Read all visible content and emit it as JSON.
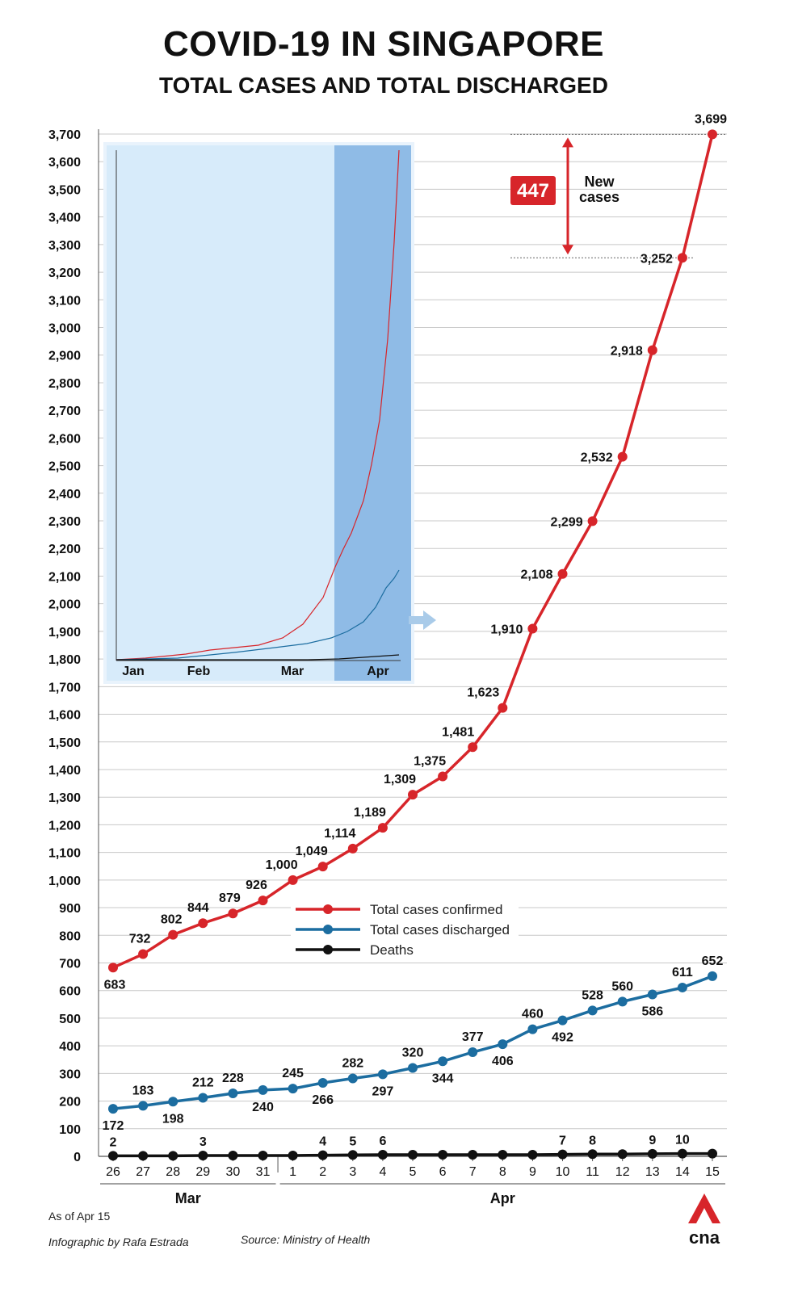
{
  "title": "COVID-19 IN SINGAPORE",
  "subtitle": "TOTAL CASES AND TOTAL DISCHARGED",
  "chart_data": {
    "type": "line",
    "ylim": [
      0,
      3700
    ],
    "y_ticks": [
      0,
      100,
      200,
      300,
      400,
      500,
      600,
      700,
      800,
      900,
      1000,
      1100,
      1200,
      1300,
      1400,
      1500,
      1600,
      1700,
      1800,
      1900,
      2000,
      2100,
      2200,
      2300,
      2400,
      2500,
      2600,
      2700,
      2800,
      2900,
      3000,
      3100,
      3200,
      3300,
      3400,
      3500,
      3600,
      3700
    ],
    "y_tick_labels": [
      "0",
      "100",
      "200",
      "300",
      "400",
      "500",
      "600",
      "700",
      "800",
      "900",
      "1,000",
      "1,100",
      "1,200",
      "1,300",
      "1,400",
      "1,500",
      "1,600",
      "1,700",
      "1,800",
      "1,900",
      "2,000",
      "2,100",
      "2,200",
      "2,300",
      "2,400",
      "2,500",
      "2,600",
      "2,700",
      "2,800",
      "2,900",
      "3,000",
      "3,100",
      "3,200",
      "3,300",
      "3,400",
      "3,500",
      "3,600",
      "3,700"
    ],
    "categories": [
      "26",
      "27",
      "28",
      "29",
      "30",
      "31",
      "1",
      "2",
      "3",
      "4",
      "5",
      "6",
      "7",
      "8",
      "9",
      "10",
      "11",
      "12",
      "13",
      "14",
      "15"
    ],
    "month_groups": [
      {
        "label": "Mar",
        "from": 0,
        "to": 5
      },
      {
        "label": "Apr",
        "from": 6,
        "to": 20
      }
    ],
    "series": [
      {
        "name": "Total cases confirmed",
        "color": "#d7252a",
        "values": [
          683,
          732,
          802,
          844,
          879,
          926,
          1000,
          1049,
          1114,
          1189,
          1309,
          1375,
          1481,
          1623,
          1910,
          2108,
          2299,
          2532,
          2918,
          3252,
          3699
        ],
        "labels": [
          "683",
          "732",
          "802",
          "844",
          "879",
          "926",
          "1,000",
          "1,049",
          "1,114",
          "1,189",
          "1,309",
          "1,375",
          "1,481",
          "1,623",
          "1,910",
          "2,108",
          "2,299",
          "2,532",
          "2,918",
          "3,252",
          "3,699"
        ]
      },
      {
        "name": "Total cases discharged",
        "color": "#1c6da0",
        "values": [
          172,
          183,
          198,
          212,
          228,
          240,
          245,
          266,
          282,
          297,
          320,
          344,
          377,
          406,
          460,
          492,
          528,
          560,
          586,
          611,
          652
        ],
        "labels": [
          "172",
          "183",
          "198",
          "212",
          "228",
          "240",
          "245",
          "266",
          "282",
          "297",
          "320",
          "344",
          "377",
          "406",
          "460",
          "492",
          "528",
          "560",
          "586",
          "611",
          "652"
        ]
      },
      {
        "name": "Deaths",
        "color": "#111111",
        "values": [
          2,
          2,
          2,
          3,
          3,
          3,
          3,
          4,
          5,
          6,
          6,
          6,
          6,
          6,
          6,
          7,
          8,
          8,
          9,
          10,
          10
        ],
        "labels": [
          "2",
          "",
          "",
          "3",
          "",
          "",
          "",
          "4",
          "5",
          "6",
          "",
          "",
          "",
          "",
          "",
          "7",
          "8",
          "",
          "9",
          "10",
          ""
        ]
      }
    ],
    "annotation": {
      "value": "447",
      "text_line1": "New",
      "text_line2": "cases",
      "from": 3252,
      "to": 3699
    },
    "inset": {
      "months": [
        "Jan",
        "Feb",
        "Mar",
        "Apr"
      ],
      "highlight": "Apr",
      "note": "overview Jan–Apr"
    }
  },
  "footer": {
    "as_of": "As of Apr 15",
    "credit": "Infographic by Rafa Estrada",
    "source": "Source: Ministry of Health",
    "logo": "cna"
  },
  "colors": {
    "red": "#d7252a",
    "blue": "#1c6da0",
    "black": "#111111",
    "inset_bg": "#d7ebfa",
    "inset_hl": "#8fbbe6"
  }
}
